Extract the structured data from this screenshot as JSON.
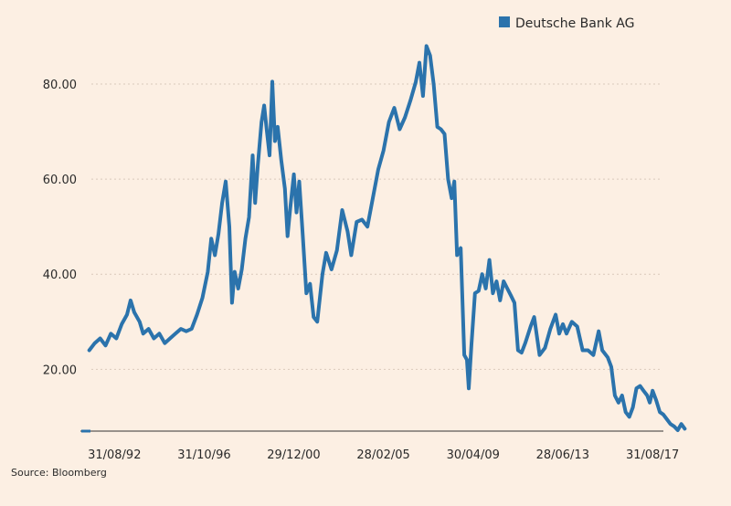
{
  "source_text": "Source: Bloomberg",
  "colors": {
    "background": "#fcefe3",
    "series": "#2b73ac",
    "axis": "#333333",
    "grid": "#d9c9bb"
  },
  "chart_data": {
    "type": "line",
    "title": "",
    "xlabel": "",
    "ylabel": "",
    "grid": "horizontal",
    "legend_position": "top-right",
    "ylim": [
      7,
      90
    ],
    "yticks": [
      20,
      40,
      60,
      80
    ],
    "ytick_labels": [
      "20.00",
      "40.00",
      "60.00",
      "80.00"
    ],
    "xlim": [
      "1991-01-31",
      "2018-01-31"
    ],
    "xtick_labels": [
      {
        "date": "1992-08-31",
        "label": "31/08/92"
      },
      {
        "date": "1996-10-31",
        "label": "31/10/96"
      },
      {
        "date": "2000-12-29",
        "label": "29/12/00"
      },
      {
        "date": "2005-02-28",
        "label": "28/02/05"
      },
      {
        "date": "2009-04-30",
        "label": "30/04/09"
      },
      {
        "date": "2013-06-28",
        "label": "28/06/13"
      },
      {
        "date": "2017-08-31",
        "label": "31/08/17"
      }
    ],
    "series": [
      {
        "name": "Deutsche Bank AG",
        "color": "#2b73ac",
        "points": [
          [
            "1991-07-01",
            24.0
          ],
          [
            "1991-10-01",
            25.5
          ],
          [
            "1992-01-01",
            26.5
          ],
          [
            "1992-04-01",
            25.0
          ],
          [
            "1992-07-01",
            27.5
          ],
          [
            "1992-10-01",
            26.5
          ],
          [
            "1993-01-01",
            29.5
          ],
          [
            "1993-04-01",
            31.5
          ],
          [
            "1993-06-01",
            34.5
          ],
          [
            "1993-08-01",
            32.0
          ],
          [
            "1993-11-01",
            30.0
          ],
          [
            "1994-01-01",
            27.5
          ],
          [
            "1994-04-01",
            28.5
          ],
          [
            "1994-07-01",
            26.5
          ],
          [
            "1994-10-01",
            27.5
          ],
          [
            "1995-01-01",
            25.5
          ],
          [
            "1995-04-01",
            26.5
          ],
          [
            "1995-07-01",
            27.5
          ],
          [
            "1995-10-01",
            28.5
          ],
          [
            "1996-01-01",
            28.0
          ],
          [
            "1996-04-01",
            28.5
          ],
          [
            "1996-07-01",
            31.5
          ],
          [
            "1996-10-01",
            35.0
          ],
          [
            "1997-01-01",
            40.5
          ],
          [
            "1997-03-01",
            47.5
          ],
          [
            "1997-05-01",
            44.0
          ],
          [
            "1997-07-01",
            48.5
          ],
          [
            "1997-09-01",
            55.0
          ],
          [
            "1997-11-01",
            59.5
          ],
          [
            "1998-01-01",
            50.0
          ],
          [
            "1998-02-15",
            34.0
          ],
          [
            "1998-04-01",
            40.5
          ],
          [
            "1998-06-01",
            37.0
          ],
          [
            "1998-08-01",
            41.0
          ],
          [
            "1998-10-01",
            47.5
          ],
          [
            "1998-12-01",
            52.0
          ],
          [
            "1999-02-01",
            65.0
          ],
          [
            "1999-03-15",
            55.0
          ],
          [
            "1999-05-01",
            63.0
          ],
          [
            "1999-07-01",
            72.0
          ],
          [
            "1999-08-15",
            75.5
          ],
          [
            "1999-10-01",
            70.0
          ],
          [
            "1999-11-15",
            65.0
          ],
          [
            "2000-01-01",
            80.5
          ],
          [
            "2000-02-15",
            68.0
          ],
          [
            "2000-04-01",
            71.0
          ],
          [
            "2000-06-01",
            64.0
          ],
          [
            "2000-08-01",
            58.0
          ],
          [
            "2000-09-15",
            48.0
          ],
          [
            "2000-11-01",
            54.0
          ],
          [
            "2001-01-01",
            61.0
          ],
          [
            "2001-02-15",
            53.0
          ],
          [
            "2001-04-01",
            59.5
          ],
          [
            "2001-06-01",
            48.0
          ],
          [
            "2001-08-01",
            36.0
          ],
          [
            "2001-10-01",
            38.0
          ],
          [
            "2001-12-01",
            31.0
          ],
          [
            "2002-02-01",
            30.0
          ],
          [
            "2002-05-01",
            40.0
          ],
          [
            "2002-07-01",
            44.5
          ],
          [
            "2002-10-01",
            41.0
          ],
          [
            "2003-01-01",
            45.0
          ],
          [
            "2003-04-01",
            53.5
          ],
          [
            "2003-07-01",
            49.0
          ],
          [
            "2003-09-01",
            44.0
          ],
          [
            "2003-12-01",
            51.0
          ],
          [
            "2004-03-01",
            51.5
          ],
          [
            "2004-06-01",
            50.0
          ],
          [
            "2004-09-01",
            56.0
          ],
          [
            "2004-12-01",
            62.0
          ],
          [
            "2005-03-01",
            66.0
          ],
          [
            "2005-06-01",
            72.0
          ],
          [
            "2005-09-01",
            75.0
          ],
          [
            "2005-12-01",
            70.5
          ],
          [
            "2006-03-01",
            73.0
          ],
          [
            "2006-06-01",
            76.5
          ],
          [
            "2006-09-01",
            80.5
          ],
          [
            "2006-11-01",
            84.5
          ],
          [
            "2007-01-01",
            77.5
          ],
          [
            "2007-03-01",
            88.0
          ],
          [
            "2007-05-01",
            86.0
          ],
          [
            "2007-07-01",
            80.0
          ],
          [
            "2007-09-01",
            71.0
          ],
          [
            "2007-11-01",
            70.5
          ],
          [
            "2008-01-01",
            69.5
          ],
          [
            "2008-03-01",
            60.0
          ],
          [
            "2008-05-01",
            56.0
          ],
          [
            "2008-06-15",
            59.5
          ],
          [
            "2008-08-01",
            44.0
          ],
          [
            "2008-10-01",
            45.5
          ],
          [
            "2008-12-01",
            23.0
          ],
          [
            "2009-01-15",
            22.0
          ],
          [
            "2009-02-15",
            16.0
          ],
          [
            "2009-04-01",
            25.0
          ],
          [
            "2009-06-01",
            36.0
          ],
          [
            "2009-08-01",
            36.5
          ],
          [
            "2009-10-01",
            40.0
          ],
          [
            "2009-12-01",
            37.0
          ],
          [
            "2010-02-01",
            43.0
          ],
          [
            "2010-04-01",
            36.0
          ],
          [
            "2010-06-01",
            38.5
          ],
          [
            "2010-08-01",
            34.5
          ],
          [
            "2010-10-01",
            38.5
          ],
          [
            "2010-12-01",
            37.0
          ],
          [
            "2011-02-01",
            35.5
          ],
          [
            "2011-04-01",
            34.0
          ],
          [
            "2011-06-01",
            24.0
          ],
          [
            "2011-08-01",
            23.5
          ],
          [
            "2011-10-01",
            25.5
          ],
          [
            "2012-01-01",
            29.0
          ],
          [
            "2012-03-01",
            31.0
          ],
          [
            "2012-06-01",
            23.0
          ],
          [
            "2012-09-01",
            24.5
          ],
          [
            "2012-12-01",
            28.5
          ],
          [
            "2013-03-01",
            31.5
          ],
          [
            "2013-05-01",
            27.5
          ],
          [
            "2013-07-01",
            29.5
          ],
          [
            "2013-09-01",
            27.5
          ],
          [
            "2013-12-01",
            30.0
          ],
          [
            "2014-03-01",
            29.0
          ],
          [
            "2014-06-01",
            24.0
          ],
          [
            "2014-09-01",
            24.0
          ],
          [
            "2014-12-01",
            23.0
          ],
          [
            "2015-03-01",
            28.0
          ],
          [
            "2015-05-01",
            24.0
          ],
          [
            "2015-08-01",
            22.5
          ],
          [
            "2015-10-01",
            20.5
          ],
          [
            "2015-12-01",
            14.5
          ],
          [
            "2016-02-01",
            13.0
          ],
          [
            "2016-04-01",
            14.5
          ],
          [
            "2016-06-01",
            11.0
          ],
          [
            "2016-08-01",
            10.0
          ],
          [
            "2016-10-01",
            12.0
          ],
          [
            "2016-12-01",
            16.0
          ],
          [
            "2017-02-01",
            16.5
          ],
          [
            "2017-04-01",
            15.5
          ],
          [
            "2017-06-01",
            14.5
          ],
          [
            "2017-07-15",
            13.0
          ],
          [
            "2017-09-01",
            15.5
          ],
          [
            "2017-11-01",
            13.5
          ],
          [
            "2018-01-01",
            11.0
          ],
          [
            "2018-03-01",
            10.5
          ],
          [
            "2018-05-01",
            9.5
          ],
          [
            "2018-07-01",
            8.5
          ],
          [
            "2018-09-01",
            8.0
          ],
          [
            "2018-11-01",
            7.2
          ],
          [
            "2019-01-01",
            8.5
          ],
          [
            "2019-03-01",
            7.5
          ]
        ]
      }
    ]
  }
}
